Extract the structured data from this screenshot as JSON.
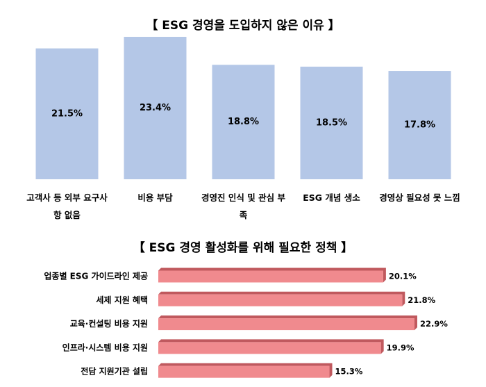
{
  "chart_data": [
    {
      "type": "bar",
      "title": "【 ESG 경영을 도입하지 않은 이유 】",
      "categories": [
        "고객사 등 외부 요구사항 없음",
        "비용 부담",
        "경영진 인식 및 관심 부족",
        "ESG 개념 생소",
        "경영상 필요성 못 느낌"
      ],
      "values": [
        21.5,
        23.4,
        18.8,
        18.5,
        17.8
      ],
      "value_labels": [
        "21.5%",
        "23.4%",
        "18.8%",
        "18.5%",
        "17.8%"
      ],
      "color": "#b4c7e7"
    },
    {
      "type": "hbar",
      "title": "【 ESG 경영 활성화를 위해 필요한 정책 】",
      "categories": [
        "업종별 ESG 가이드라인 제공",
        "세제 지원 혜택",
        "교육·컨설팅 비용 지원",
        "인프라·시스템 비용 지원",
        "전담 지원기관 설립"
      ],
      "values": [
        20.1,
        21.8,
        22.9,
        19.9,
        15.3
      ],
      "value_labels": [
        "20.1%",
        "21.8%",
        "22.9%",
        "19.9%",
        "15.3%"
      ],
      "color": "#f08a8e"
    }
  ]
}
